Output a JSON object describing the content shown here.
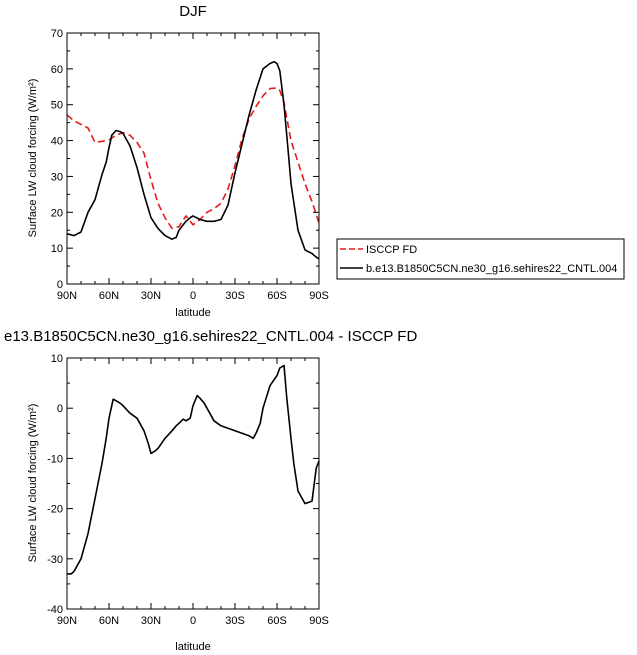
{
  "chart_data": [
    {
      "type": "line",
      "title": "DJF",
      "xlabel": "latitude",
      "ylabel": "Surface LW cloud forcing (W/m²)",
      "xlim": [
        90,
        -90
      ],
      "ylim": [
        0,
        70
      ],
      "xticks": [
        90,
        60,
        30,
        0,
        -30,
        -60,
        -90
      ],
      "xtick_labels": [
        "90N",
        "60N",
        "30N",
        "0",
        "30S",
        "60S",
        "90S"
      ],
      "yticks": [
        0,
        10,
        20,
        30,
        40,
        50,
        60,
        70
      ],
      "ytick_labels": [
        "0",
        "10",
        "20",
        "30",
        "40",
        "50",
        "60",
        "70"
      ],
      "legend": "right",
      "series": [
        {
          "name": "ISCCP FD",
          "color": "#e41a1c",
          "dash": true,
          "x": [
            90,
            85,
            80,
            75,
            70,
            65,
            60,
            55,
            50,
            45,
            40,
            35,
            30,
            25,
            20,
            15,
            10,
            5,
            0,
            -5,
            -10,
            -15,
            -20,
            -25,
            -30,
            -35,
            -40,
            -45,
            -50,
            -55,
            -60,
            -62,
            -65,
            -70,
            -75,
            -80,
            -85,
            -90
          ],
          "y": [
            47.2,
            45.5,
            44.5,
            43.5,
            39.5,
            39.8,
            40.2,
            41.5,
            42.2,
            41.5,
            39.5,
            36.5,
            29,
            22.5,
            18.5,
            15.5,
            16,
            19,
            16.5,
            18,
            20,
            21,
            22.5,
            26.5,
            33,
            40.5,
            46,
            49.5,
            52.5,
            54.5,
            54.7,
            54,
            50.5,
            40,
            34,
            28,
            23,
            17
          ]
        },
        {
          "name": "b.e13.B1850C5CN.ne30_g16.sehires22_CNTL.004",
          "color": "#000000",
          "dash": false,
          "x": [
            90,
            85,
            80,
            75,
            70,
            65,
            62,
            60,
            58,
            55,
            52,
            50,
            45,
            40,
            35,
            30,
            25,
            20,
            15,
            12,
            10,
            7,
            5,
            2,
            0,
            -5,
            -10,
            -15,
            -20,
            -25,
            -30,
            -35,
            -40,
            -45,
            -50,
            -55,
            -58,
            -60,
            -62,
            -65,
            -68,
            -70,
            -75,
            -80,
            -85,
            -88,
            -90
          ],
          "y": [
            14,
            13.5,
            14.5,
            20,
            23.5,
            30.5,
            34,
            38,
            41.5,
            42.8,
            42.5,
            42,
            38.5,
            32.5,
            25,
            18.5,
            15.5,
            13.5,
            12.5,
            13,
            15,
            16.5,
            17.5,
            18.5,
            19,
            18,
            17.5,
            17.5,
            18,
            22,
            31,
            39,
            47,
            54,
            60,
            61.5,
            62,
            61.5,
            59.5,
            50,
            37,
            28,
            15,
            9.5,
            8.5,
            7.5,
            7
          ]
        }
      ]
    },
    {
      "type": "line",
      "title": "e13.B1850C5CN.ne30_g16.sehires22_CNTL.004 - ISCCP FD",
      "xlabel": "latitude",
      "ylabel": "Surface LW cloud forcing (W/m²)",
      "xlim": [
        90,
        -90
      ],
      "ylim": [
        -40,
        10
      ],
      "xticks": [
        90,
        60,
        30,
        0,
        -30,
        -60,
        -90
      ],
      "xtick_labels": [
        "90N",
        "60N",
        "30N",
        "0",
        "30S",
        "60S",
        "90S"
      ],
      "yticks": [
        -40,
        -30,
        -20,
        -10,
        0,
        10
      ],
      "ytick_labels": [
        "-40",
        "-30",
        "-20",
        "-10",
        "0",
        "10"
      ],
      "series": [
        {
          "color": "#000000",
          "dash": false,
          "x": [
            90,
            87,
            85,
            80,
            75,
            70,
            65,
            62,
            60,
            57,
            55,
            52,
            50,
            45,
            40,
            35,
            32,
            30,
            27,
            25,
            20,
            15,
            12,
            10,
            7,
            5,
            2,
            0,
            -3,
            -5,
            -8,
            -10,
            -15,
            -20,
            -25,
            -30,
            -35,
            -40,
            -43,
            -45,
            -48,
            -50,
            -55,
            -60,
            -62,
            -65,
            -67,
            -70,
            -72,
            -75,
            -80,
            -85,
            -88,
            -90
          ],
          "y": [
            -33,
            -33,
            -32.5,
            -30,
            -25,
            -18,
            -11,
            -6,
            -2,
            1.8,
            1.5,
            1,
            0.5,
            -1,
            -2,
            -4.5,
            -7,
            -9,
            -8.5,
            -8,
            -6,
            -4.5,
            -3.5,
            -3,
            -2.2,
            -2.5,
            -2,
            0.5,
            2.5,
            2,
            1,
            0,
            -2.5,
            -3.5,
            -4,
            -4.5,
            -5,
            -5.5,
            -6,
            -5,
            -3,
            0,
            4.5,
            6.5,
            8,
            8.5,
            2,
            -6,
            -11,
            -16.5,
            -19,
            -18.5,
            -12,
            -10.5
          ]
        }
      ]
    }
  ]
}
